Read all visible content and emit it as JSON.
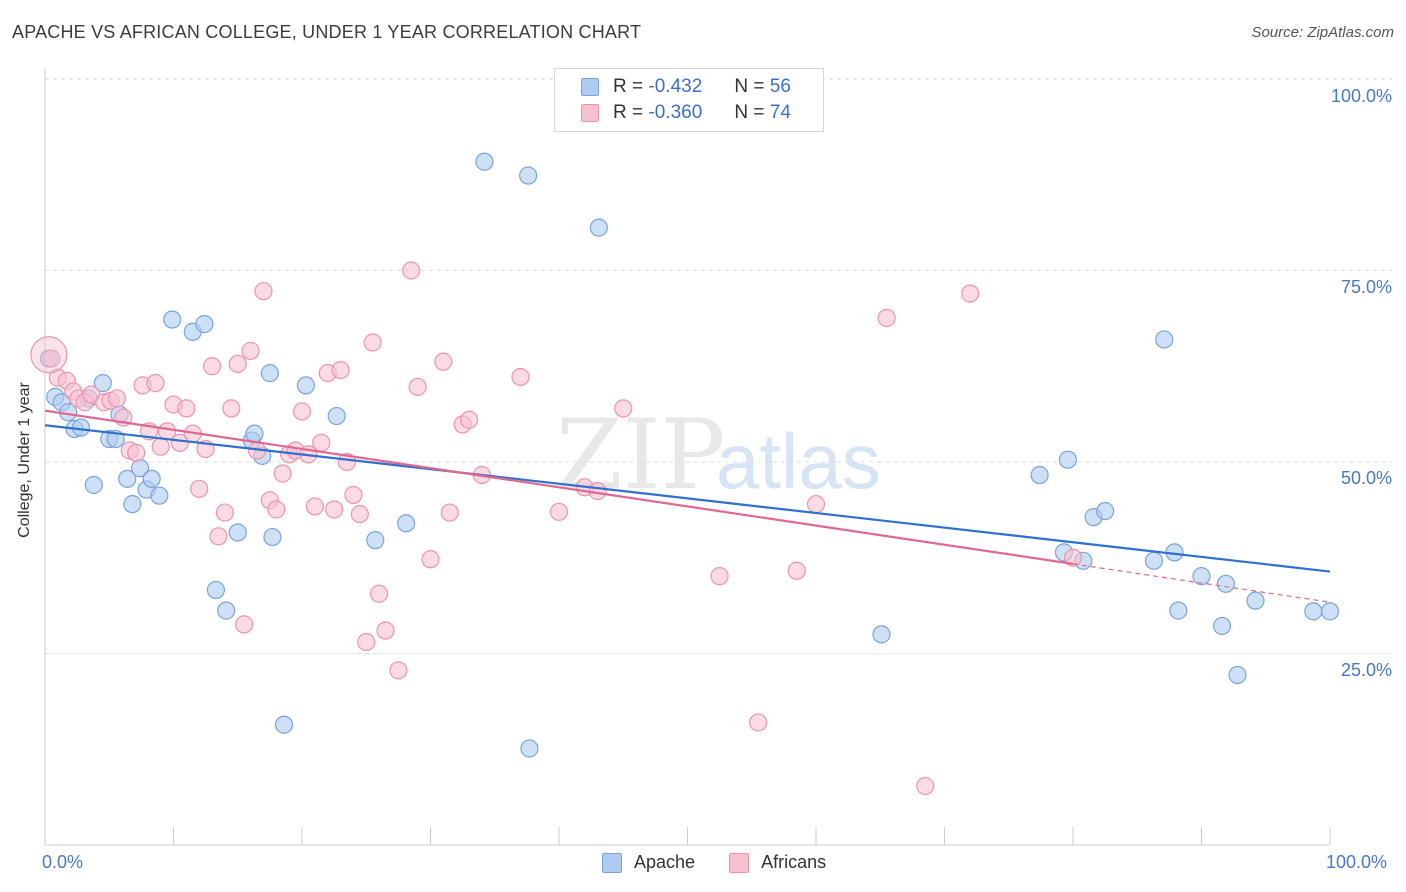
{
  "header": {
    "title": "APACHE VS AFRICAN COLLEGE, UNDER 1 YEAR CORRELATION CHART",
    "source": "Source: ZipAtlas.com"
  },
  "legend": {
    "apache": {
      "r_label": "R =",
      "r_value": "-0.432",
      "n_label": "N =",
      "n_value": "56"
    },
    "africans": {
      "r_label": "R =",
      "r_value": "-0.360",
      "n_label": "N =",
      "n_value": "74"
    }
  },
  "bottom_legend": {
    "apache": "Apache",
    "africans": "Africans"
  },
  "watermark": {
    "zip": "ZIP",
    "atlas": "atlas"
  },
  "colors": {
    "apache_fill": "#aecbf0",
    "apache_stroke": "#7aa3dd",
    "apache_line": "#2f6fd0",
    "africans_fill": "#f7c1d0",
    "africans_stroke": "#ec94ad",
    "africans_line": "#e0678f",
    "tick_label": "#4a78c8",
    "grid": "#dddddd"
  },
  "chart_data": {
    "type": "scatter",
    "title": "APACHE VS AFRICAN COLLEGE, UNDER 1 YEAR CORRELATION CHART",
    "xlabel": "",
    "ylabel": "College, Under 1 year",
    "xlim": [
      0,
      100
    ],
    "ylim": [
      0,
      100
    ],
    "x_tick_labels": [
      "0.0%",
      "100.0%"
    ],
    "y_ticks": [
      25,
      50,
      75,
      100
    ],
    "y_tick_labels": [
      "25.0%",
      "50.0%",
      "75.0%",
      "100.0%"
    ],
    "grid": true,
    "series": [
      {
        "name": "Apache",
        "trend": {
          "x0": 0,
          "y0": 54.8,
          "x1": 100,
          "y1": 35.7
        },
        "points": [
          [
            0.3,
            63.5
          ],
          [
            0.8,
            58.5
          ],
          [
            1.3,
            57.8
          ],
          [
            1.8,
            56.5
          ],
          [
            2.3,
            54.3
          ],
          [
            2.8,
            54.5
          ],
          [
            3.4,
            58.3
          ],
          [
            3.8,
            47
          ],
          [
            4.5,
            60.3
          ],
          [
            5.0,
            53
          ],
          [
            5.5,
            53
          ],
          [
            5.8,
            56.2
          ],
          [
            6.4,
            47.8
          ],
          [
            6.8,
            44.5
          ],
          [
            7.4,
            49.2
          ],
          [
            7.9,
            46.4
          ],
          [
            8.3,
            47.8
          ],
          [
            8.9,
            45.6
          ],
          [
            9.9,
            68.6
          ],
          [
            11.5,
            67
          ],
          [
            12.4,
            68
          ],
          [
            13.3,
            33.3
          ],
          [
            14.1,
            30.6
          ],
          [
            15.0,
            40.8
          ],
          [
            16.1,
            52.8
          ],
          [
            16.3,
            53.7
          ],
          [
            16.9,
            50.8
          ],
          [
            17.5,
            61.6
          ],
          [
            17.7,
            40.2
          ],
          [
            18.6,
            15.7
          ],
          [
            20.3,
            60
          ],
          [
            22.7,
            56
          ],
          [
            25.7,
            39.8
          ],
          [
            28.1,
            42
          ],
          [
            34.2,
            89.2
          ],
          [
            37.6,
            87.4
          ],
          [
            37.7,
            12.6
          ],
          [
            43.1,
            80.6
          ],
          [
            65.1,
            27.5
          ],
          [
            77.4,
            48.3
          ],
          [
            79.3,
            38.2
          ],
          [
            79.6,
            50.3
          ],
          [
            80.8,
            37.1
          ],
          [
            81.6,
            42.8
          ],
          [
            82.5,
            43.6
          ],
          [
            86.3,
            37.1
          ],
          [
            87.1,
            66
          ],
          [
            87.9,
            38.2
          ],
          [
            88.2,
            30.6
          ],
          [
            90.0,
            35.1
          ],
          [
            91.6,
            28.6
          ],
          [
            91.9,
            34.1
          ],
          [
            92.8,
            22.2
          ],
          [
            94.2,
            31.9
          ],
          [
            98.7,
            30.5
          ],
          [
            100,
            30.5
          ]
        ]
      },
      {
        "name": "Africans",
        "trend": {
          "x0": 0,
          "y0": 56.7,
          "x1": 80,
          "y1": 36.7
        },
        "trend_dashed": {
          "x0": 80,
          "y0": 36.7,
          "x1": 100,
          "y1": 31.7
        },
        "points": [
          [
            0.5,
            63.5
          ],
          [
            1.0,
            61
          ],
          [
            1.7,
            60.6
          ],
          [
            2.2,
            59.2
          ],
          [
            2.6,
            58.3
          ],
          [
            3.1,
            57.8
          ],
          [
            3.6,
            58.8
          ],
          [
            4.6,
            57.8
          ],
          [
            5.1,
            58
          ],
          [
            5.6,
            58.3
          ],
          [
            6.1,
            55.8
          ],
          [
            6.6,
            51.5
          ],
          [
            7.1,
            51.2
          ],
          [
            7.6,
            60
          ],
          [
            8.1,
            54
          ],
          [
            8.6,
            60.3
          ],
          [
            9.0,
            52
          ],
          [
            9.5,
            54
          ],
          [
            10.0,
            57.5
          ],
          [
            10.5,
            52.5
          ],
          [
            11.0,
            57
          ],
          [
            11.5,
            53.7
          ],
          [
            12.0,
            46.5
          ],
          [
            12.5,
            51.7
          ],
          [
            13.0,
            62.5
          ],
          [
            13.5,
            40.3
          ],
          [
            14.0,
            43.4
          ],
          [
            14.5,
            57
          ],
          [
            15.0,
            62.8
          ],
          [
            15.5,
            28.8
          ],
          [
            16.0,
            64.5
          ],
          [
            16.5,
            51.5
          ],
          [
            17.0,
            72.3
          ],
          [
            17.5,
            45
          ],
          [
            18.0,
            43.8
          ],
          [
            18.5,
            48.5
          ],
          [
            19.0,
            51
          ],
          [
            19.5,
            51.5
          ],
          [
            20.0,
            56.6
          ],
          [
            20.5,
            51
          ],
          [
            21.0,
            44.2
          ],
          [
            21.5,
            52.5
          ],
          [
            22.0,
            61.6
          ],
          [
            22.5,
            43.8
          ],
          [
            23.0,
            62
          ],
          [
            23.5,
            50
          ],
          [
            24.0,
            45.7
          ],
          [
            24.5,
            43.2
          ],
          [
            25.0,
            26.5
          ],
          [
            25.5,
            65.6
          ],
          [
            26.0,
            32.8
          ],
          [
            26.5,
            28
          ],
          [
            27.5,
            22.8
          ],
          [
            28.5,
            75
          ],
          [
            29.0,
            59.8
          ],
          [
            30.0,
            37.3
          ],
          [
            31.0,
            63.1
          ],
          [
            31.5,
            43.4
          ],
          [
            32.5,
            54.9
          ],
          [
            33.0,
            55.5
          ],
          [
            34.0,
            48.3
          ],
          [
            37.0,
            61.1
          ],
          [
            40.0,
            43.5
          ],
          [
            42.0,
            46.7
          ],
          [
            43.0,
            46.2
          ],
          [
            45.0,
            57
          ],
          [
            52.5,
            35.1
          ],
          [
            55.5,
            16
          ],
          [
            58.5,
            35.8
          ],
          [
            60.0,
            44.5
          ],
          [
            65.5,
            68.8
          ],
          [
            68.5,
            7.7
          ],
          [
            72.0,
            72
          ],
          [
            80.0,
            37.5
          ]
        ]
      }
    ]
  }
}
